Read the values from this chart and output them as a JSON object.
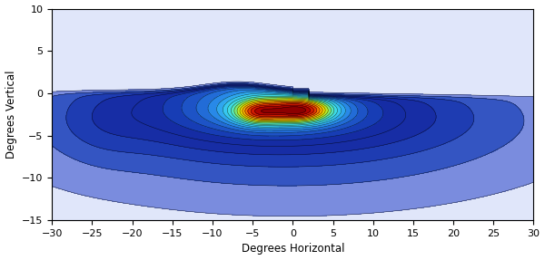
{
  "xlim": [
    -30,
    30
  ],
  "ylim": [
    -15,
    10
  ],
  "xlabel": "Degrees Horizontal",
  "ylabel": "Degrees Vertical",
  "xticks": [
    -30,
    -25,
    -20,
    -15,
    -10,
    -5,
    0,
    5,
    10,
    15,
    20,
    25,
    30
  ],
  "yticks": [
    -15,
    -10,
    -5,
    0,
    5,
    10
  ],
  "background_color": "#ffffff",
  "beam_bg_color": "#3a5fc8"
}
